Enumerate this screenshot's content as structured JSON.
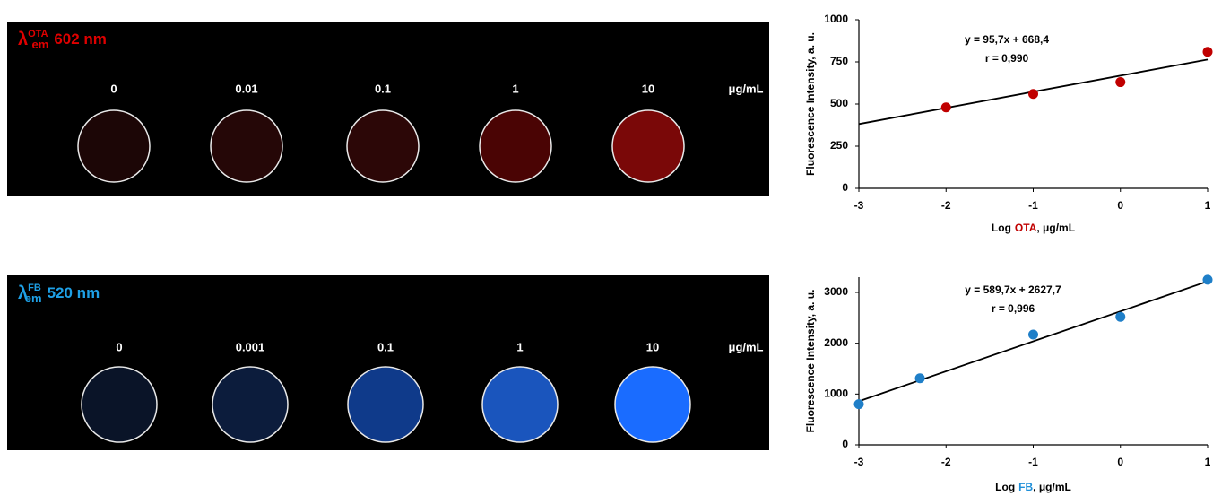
{
  "panels": [
    {
      "symbol": "λ",
      "superscript": "OTA",
      "subscript": "em",
      "wavelength": "602 nm",
      "color": "#e00000",
      "unit": "μg/mL",
      "wells": [
        {
          "label": "0",
          "color": "#1c0606"
        },
        {
          "label": "0.01",
          "color": "#250707"
        },
        {
          "label": "0.1",
          "color": "#2c0707"
        },
        {
          "label": "1",
          "color": "#4a0404"
        },
        {
          "label": "10",
          "color": "#7a0808"
        }
      ]
    },
    {
      "symbol": "λ",
      "superscript": "FB",
      "subscript": "em",
      "wavelength": "520 nm",
      "color": "#1ea0e6",
      "unit": "μg/mL",
      "wells": [
        {
          "label": "0",
          "color": "#0a1428"
        },
        {
          "label": "0.001",
          "color": "#0c1c3c"
        },
        {
          "label": "0.1",
          "color": "#0f3a8a"
        },
        {
          "label": "1",
          "color": "#1a55bd"
        },
        {
          "label": "10",
          "color": "#1a6cff"
        }
      ]
    }
  ],
  "chart_data": [
    {
      "type": "scatter",
      "ylabel": "Fluorescence Intensity, a. u.",
      "xlabel_prefix": "Log",
      "xlabel_analyte": "OTA",
      "xlabel_unit": ", μg/mL",
      "analyte_color": "#c00000",
      "x": [
        -2,
        -1,
        0,
        1
      ],
      "values": [
        480,
        560,
        630,
        810
      ],
      "color": "#c00000",
      "fit": {
        "slope": 95.7,
        "intercept": 668.4,
        "equation": "y = 95,7x + 668,4",
        "r_label": "r = 0,990"
      },
      "xlim": [
        -3,
        1
      ],
      "xticks": [
        -3,
        -2,
        -1,
        0,
        1
      ],
      "ylim": [
        0,
        1000
      ],
      "yticks": [
        0,
        250,
        500,
        750,
        1000
      ]
    },
    {
      "type": "scatter",
      "ylabel": "Fluorescence Intensity, a. u.",
      "xlabel_prefix": "Log",
      "xlabel_analyte": "FB",
      "xlabel_unit": ", μg/mL",
      "analyte_color": "#1f8fd8",
      "x": [
        -3,
        -2.3,
        -1,
        0,
        1
      ],
      "values": [
        800,
        1310,
        2170,
        2520,
        3250
      ],
      "color": "#1f7fc8",
      "fit": {
        "slope": 589.7,
        "intercept": 2627.7,
        "equation": "y = 589,7x + 2627,7",
        "r_label": "r = 0,996"
      },
      "xlim": [
        -3,
        1
      ],
      "xticks": [
        -3,
        -2,
        -1,
        0,
        1
      ],
      "ylim": [
        0,
        3300
      ],
      "yticks": [
        0,
        1000,
        2000,
        3000
      ]
    }
  ]
}
